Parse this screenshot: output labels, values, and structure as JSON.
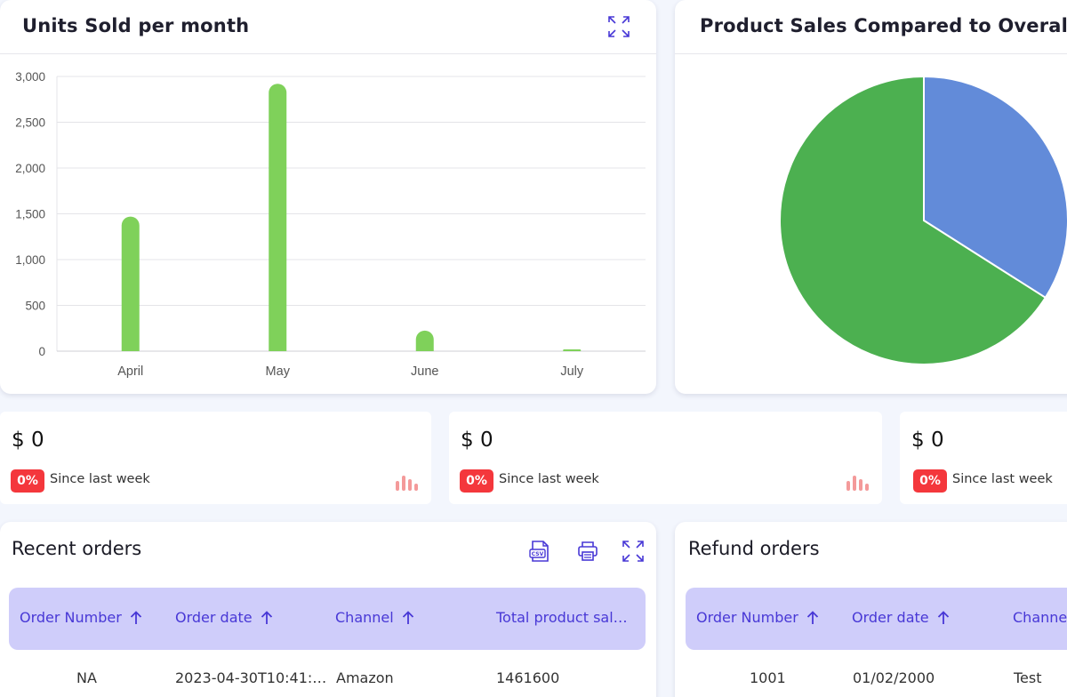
{
  "units_card": {
    "title": "Units Sold per month"
  },
  "pie_card": {
    "title": "Product Sales Compared to Overal"
  },
  "chart_data": [
    {
      "type": "bar",
      "title": "Units Sold per month",
      "categories": [
        "April",
        "May",
        "June",
        "July"
      ],
      "values": [
        1470,
        2920,
        225,
        20
      ],
      "ylim": [
        0,
        3000
      ],
      "yticks": [
        "0",
        "500",
        "1,000",
        "1,500",
        "2,000",
        "2,500",
        "3,000"
      ],
      "grid": true,
      "colors": {
        "bar": "#7fd15a",
        "grid": "#e4e4e8",
        "axis_text": "#555555"
      }
    },
    {
      "type": "pie",
      "title": "Product Sales Compared to Overal",
      "values": [
        34,
        66
      ],
      "colors": [
        "#628bd9",
        "#4cb050"
      ]
    }
  ],
  "stats": [
    {
      "value": "$ 0",
      "badge": "0%",
      "label": "Since last week"
    },
    {
      "value": "$ 0",
      "badge": "0%",
      "label": "Since last week"
    },
    {
      "value": "$ 0",
      "badge": "0%",
      "label": "Since last week"
    }
  ],
  "recent_orders": {
    "title": "Recent orders",
    "icons": [
      "csv-file-icon",
      "printer-icon",
      "expand-icon"
    ],
    "columns": [
      "Order Number",
      "Order date",
      "Channel",
      "Total product sal…"
    ],
    "rows": [
      [
        "NA",
        "2023-04-30T10:41:…",
        "Amazon",
        "1461600"
      ]
    ]
  },
  "refund_orders": {
    "title": "Refund orders",
    "columns": [
      "Order Number",
      "Order date",
      "Channe"
    ],
    "rows": [
      [
        "1001",
        "01/02/2000",
        "Test"
      ]
    ]
  },
  "accent_color": "#4838d6",
  "badge_color": "#f4373c"
}
